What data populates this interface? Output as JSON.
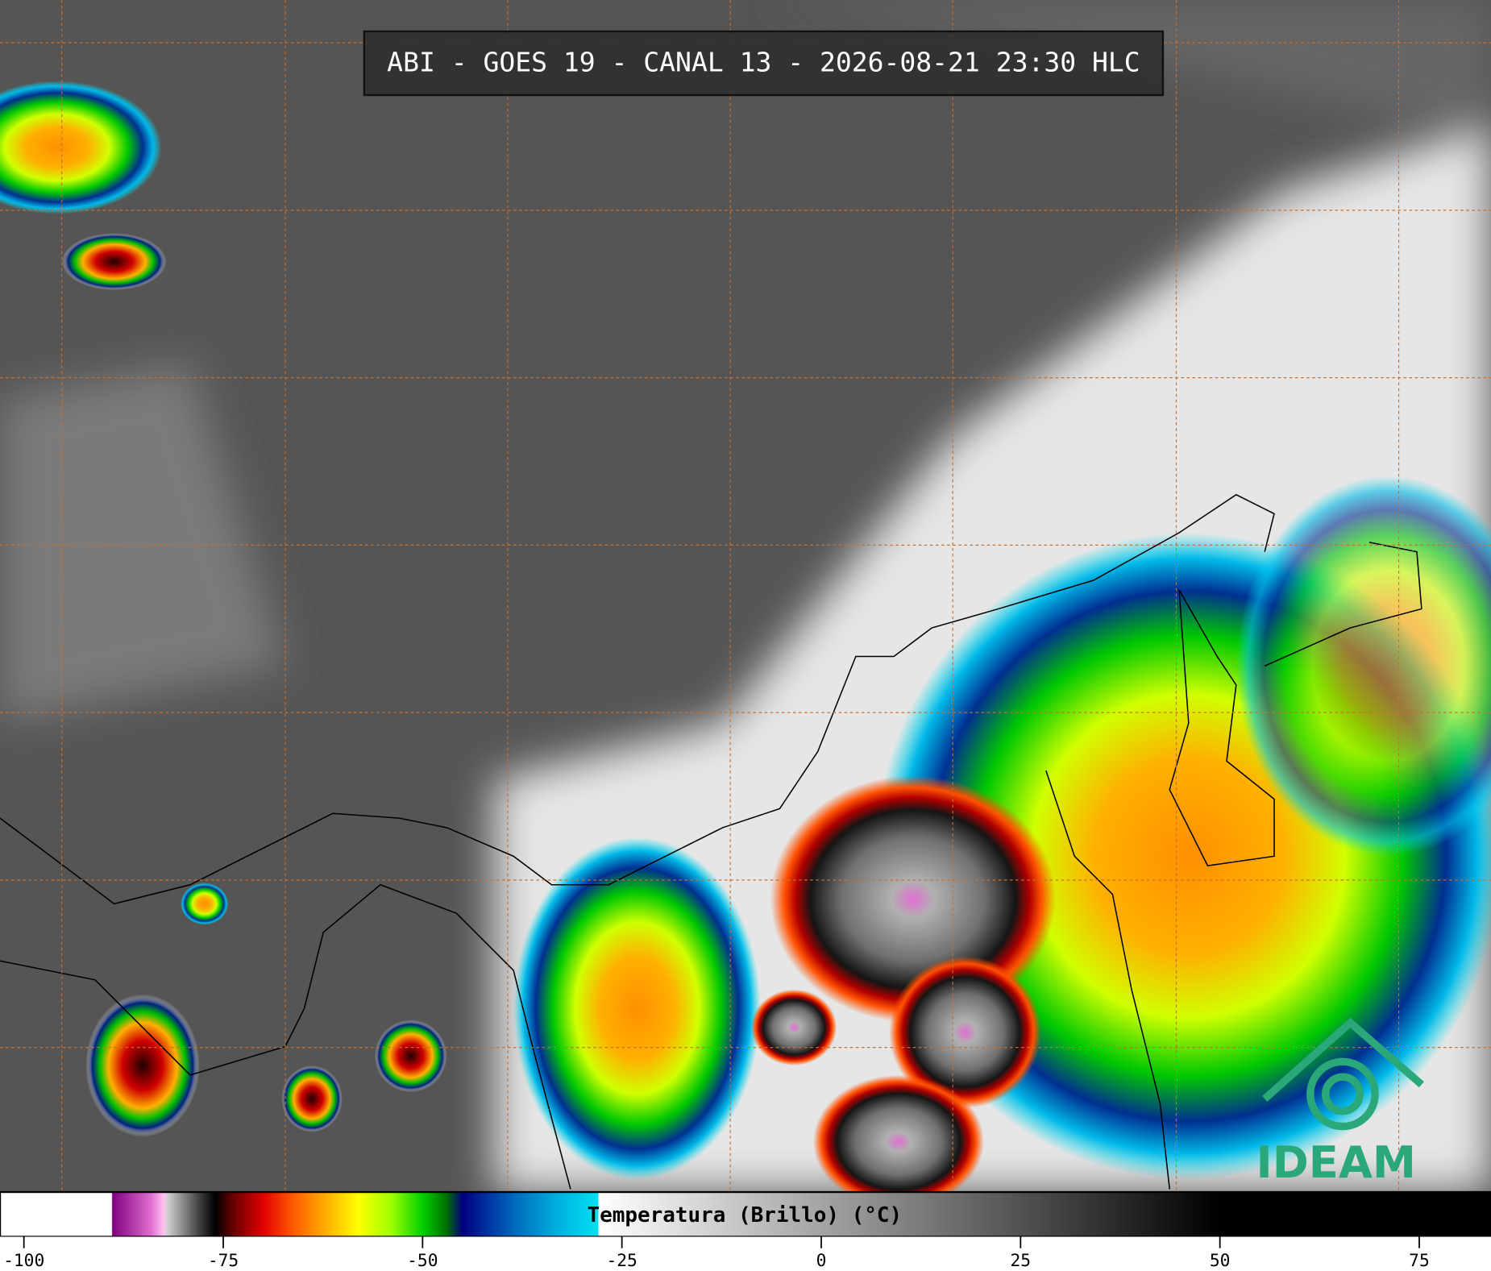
{
  "chart_data": {
    "type": "colorbar",
    "title": "ABI - GOES 19 - CANAL 13 - 2026-08-21 23:30 HLC",
    "label": "Temperatura (Brillo) (°C)",
    "xlim": [
      -103,
      84
    ],
    "xticks": [
      -100,
      -75,
      -50,
      -25,
      0,
      25,
      50,
      75
    ],
    "colormap": [
      {
        "value": -103,
        "color": "#ffffff"
      },
      {
        "value": -89,
        "color": "#ffffff"
      },
      {
        "value": -88.9,
        "color": "#800080"
      },
      {
        "value": -84,
        "color": "#e070d0"
      },
      {
        "value": -82.5,
        "color": "#ffc0f0"
      },
      {
        "value": -82,
        "color": "#d0d0d0"
      },
      {
        "value": -78,
        "color": "#404040"
      },
      {
        "value": -76,
        "color": "#000000"
      },
      {
        "value": -74,
        "color": "#600000"
      },
      {
        "value": -70,
        "color": "#e00000"
      },
      {
        "value": -66,
        "color": "#ff6000"
      },
      {
        "value": -62,
        "color": "#ffb000"
      },
      {
        "value": -58,
        "color": "#ffff00"
      },
      {
        "value": -54,
        "color": "#a0ff00"
      },
      {
        "value": -50,
        "color": "#00d000"
      },
      {
        "value": -47,
        "color": "#007000"
      },
      {
        "value": -45,
        "color": "#000080"
      },
      {
        "value": -42,
        "color": "#0030a0"
      },
      {
        "value": -38,
        "color": "#0070c0"
      },
      {
        "value": -33,
        "color": "#00b0e0"
      },
      {
        "value": -28,
        "color": "#00e0f0"
      },
      {
        "value": -27.9,
        "color": "#ffffff"
      },
      {
        "value": 50,
        "color": "#000000"
      },
      {
        "value": 84,
        "color": "#000000"
      }
    ]
  },
  "logo": "IDEAM"
}
